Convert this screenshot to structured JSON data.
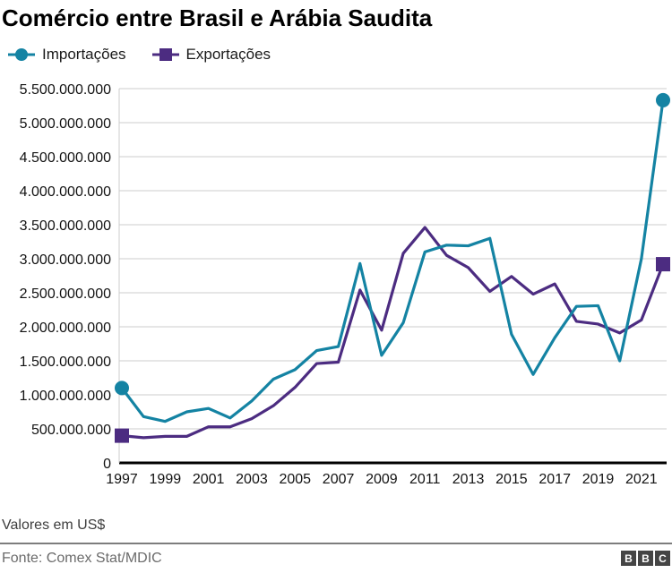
{
  "title": "Comércio entre Brasil e Arábia Saudita",
  "legend": [
    {
      "label": "Importações",
      "color": "#1483a3",
      "marker": "circle"
    },
    {
      "label": "Exportações",
      "color": "#4c2c81",
      "marker": "square"
    }
  ],
  "footer": {
    "caption": "Valores em US$",
    "source": "Fonte: Comex Stat/MDIC",
    "logo_letters": [
      "B",
      "B",
      "C"
    ]
  },
  "chart_data": {
    "type": "line",
    "title": "Comércio entre Brasil e Arábia Saudita",
    "xlabel": "",
    "ylabel": "Valores em US$",
    "grid": true,
    "legend_position": "top",
    "ylim": [
      0,
      5500000000
    ],
    "ytick_step": 500000000,
    "y_tick_labels": [
      "0",
      "500.000.000",
      "1.000.000.000",
      "1.500.000.000",
      "2.000.000.000",
      "2.500.000.000",
      "3.000.000.000",
      "3.500.000.000",
      "4.000.000.000",
      "4.500.000.000",
      "5.000.000.000",
      "5.500.000.000"
    ],
    "x": [
      1997,
      1998,
      1999,
      2000,
      2001,
      2002,
      2003,
      2004,
      2005,
      2006,
      2007,
      2008,
      2009,
      2010,
      2011,
      2012,
      2013,
      2014,
      2015,
      2016,
      2017,
      2018,
      2019,
      2020,
      2021,
      2022
    ],
    "x_tick_labels": [
      "1997",
      "1999",
      "2001",
      "2003",
      "2005",
      "2007",
      "2009",
      "2011",
      "2013",
      "2015",
      "2017",
      "2019",
      "2021"
    ],
    "series": [
      {
        "name": "Importações",
        "color": "#1483a3",
        "marker": "circle",
        "values": [
          1100000000,
          680000000,
          610000000,
          750000000,
          800000000,
          660000000,
          910000000,
          1230000000,
          1370000000,
          1650000000,
          1710000000,
          2930000000,
          1580000000,
          2060000000,
          3100000000,
          3200000000,
          3190000000,
          3300000000,
          1890000000,
          1300000000,
          1840000000,
          2300000000,
          2310000000,
          1500000000,
          3000000000,
          5330000000
        ]
      },
      {
        "name": "Exportações",
        "color": "#4c2c81",
        "marker": "square",
        "values": [
          400000000,
          370000000,
          390000000,
          390000000,
          530000000,
          530000000,
          650000000,
          840000000,
          1110000000,
          1460000000,
          1480000000,
          2540000000,
          1950000000,
          3080000000,
          3460000000,
          3050000000,
          2870000000,
          2520000000,
          2740000000,
          2480000000,
          2630000000,
          2080000000,
          2040000000,
          1910000000,
          2100000000,
          2920000000
        ]
      }
    ]
  }
}
